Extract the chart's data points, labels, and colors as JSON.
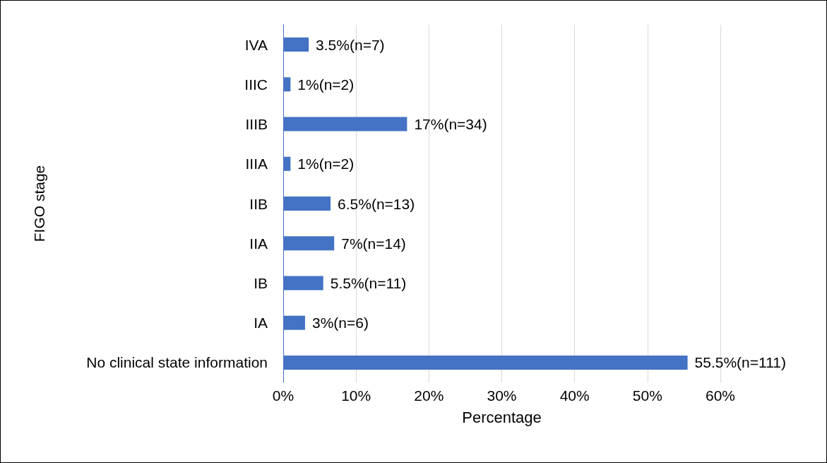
{
  "chart_data": {
    "type": "bar",
    "orientation": "horizontal",
    "xlabel": "Percentage",
    "ylabel": "FIGO stage",
    "categories": [
      "IVA",
      "IIIC",
      "IIIB",
      "IIIA",
      "IIB",
      "IIA",
      "IB",
      "IA",
      "No clinical state information"
    ],
    "values": [
      3.5,
      1,
      17,
      1,
      6.5,
      7,
      5.5,
      3,
      55.5
    ],
    "value_labels": [
      "3.5%(n=7)",
      "1%(n=2)",
      "17%(n=34)",
      "1%(n=2)",
      "6.5%(n=13)",
      "7%(n=14)",
      "5.5%(n=11)",
      "3%(n=6)",
      "55.5%(n=111)"
    ],
    "color": "#4472c4",
    "xlim": [
      0,
      60
    ],
    "xticks": [
      {
        "value": 0,
        "label": "0%"
      },
      {
        "value": 10,
        "label": "10%"
      },
      {
        "value": 20,
        "label": "20%"
      },
      {
        "value": 30,
        "label": "30%"
      },
      {
        "value": 40,
        "label": "40%"
      },
      {
        "value": 50,
        "label": "50%"
      },
      {
        "value": 60,
        "label": "60%"
      }
    ],
    "grid": "x"
  }
}
